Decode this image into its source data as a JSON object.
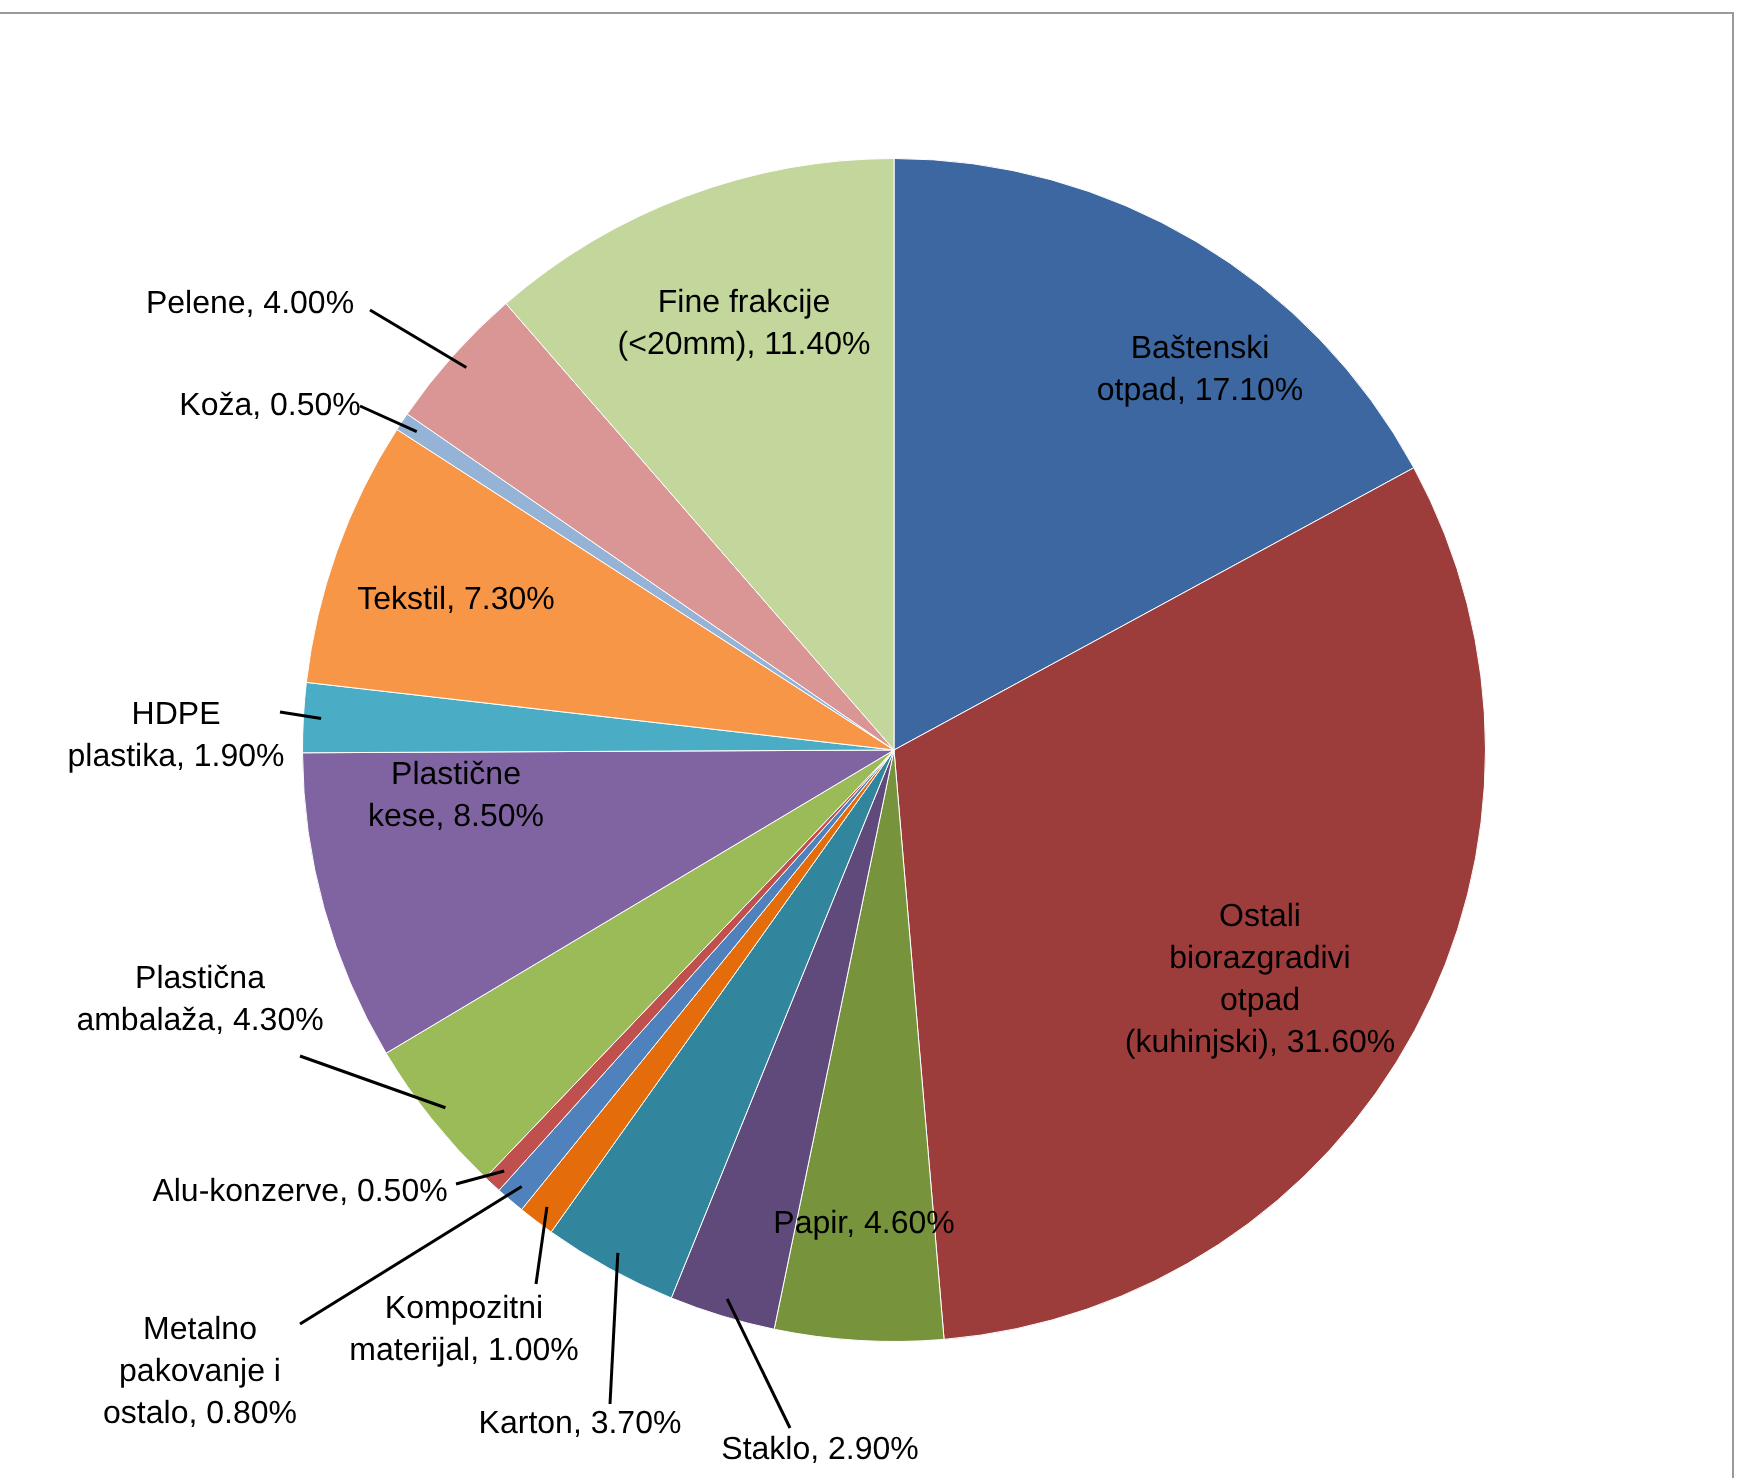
{
  "chart_data": {
    "type": "pie",
    "categories": [
      "Baštenski otpad",
      "Ostali biorazgradivi otpad (kuhinjski)",
      "Papir",
      "Staklo",
      "Karton",
      "Kompozitni materijal",
      "Metalno pakovanje i ostalo",
      "Alu-konzerve",
      "Plastična ambalaža",
      "Plastične kese",
      "HDPE plastika",
      "Tekstil",
      "Koža",
      "Pelene",
      "Fine frakcije (<20mm)"
    ],
    "values": [
      17.1,
      31.6,
      4.6,
      2.9,
      3.7,
      1.0,
      0.8,
      0.5,
      4.3,
      8.5,
      1.9,
      7.3,
      0.5,
      4.0,
      11.4
    ],
    "value_labels": [
      "17.10%",
      "31.60%",
      "4.60%",
      "2.90%",
      "3.70%",
      "1.00%",
      "0.80%",
      "0.50%",
      "4.30%",
      "8.50%",
      "1.90%",
      "7.30%",
      "0.50%",
      "4.00%",
      "11.40%"
    ],
    "colors": [
      "#3d67a1",
      "#9c3d3b",
      "#77933c",
      "#604a7b",
      "#31859c",
      "#e46c0a",
      "#4f81bd",
      "#c0504d",
      "#9bbb59",
      "#8064a2",
      "#4bacc6",
      "#f79646",
      "#95b3d7",
      "#d99694",
      "#c3d69b"
    ],
    "legend": false
  }
}
